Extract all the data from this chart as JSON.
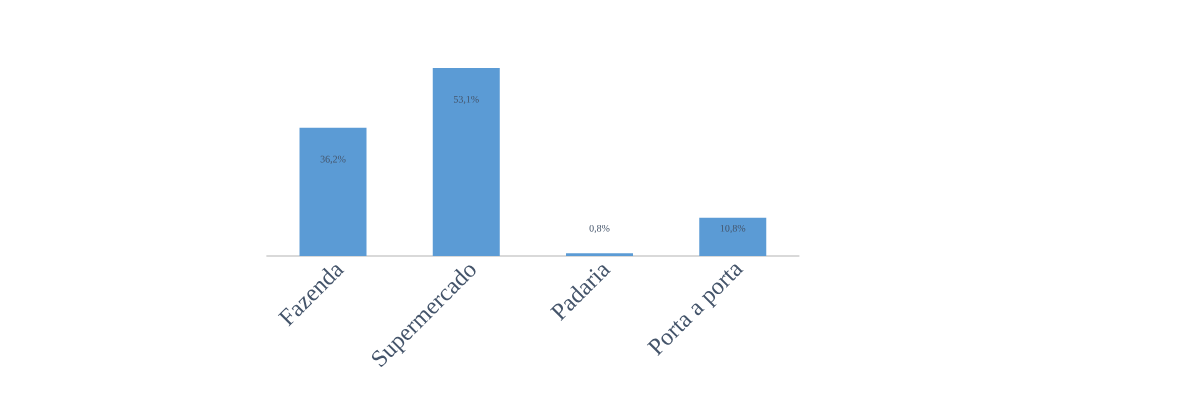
{
  "chart_data": {
    "type": "bar",
    "categories": [
      "Fazenda",
      "Supermercado",
      "Padaria",
      "Porta a porta"
    ],
    "values": [
      36.2,
      53.1,
      0.8,
      10.8
    ],
    "value_labels": [
      "36,2%",
      "53,1%",
      "0,8%",
      "10,8%"
    ],
    "color": "#5b9bd5"
  }
}
